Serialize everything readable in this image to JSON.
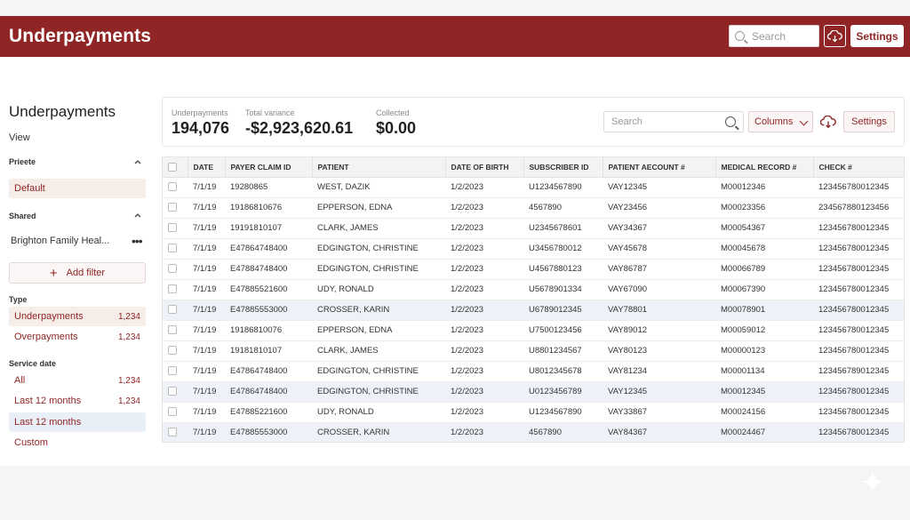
{
  "header": {
    "title": "Underpayments",
    "search_placeholder": "Search",
    "settings_label": "Settings",
    "accent": "#8f2525"
  },
  "sidebar": {
    "title": "Underpayments",
    "view_label": "View",
    "private_label": "Priеete",
    "default_item": "Default",
    "shared_label": "Shared",
    "shared_item": "Brighton Family Heal...",
    "add_filter": "Add filter",
    "type_label": "Type",
    "types": [
      {
        "label": "Underpayments",
        "count": "1,234"
      },
      {
        "label": "Overpayments",
        "count": "1,234"
      }
    ],
    "service_label": "Service date",
    "service": [
      {
        "label": "All",
        "count": "1,234"
      },
      {
        "label": "Last 12 months",
        "count": "1,234"
      },
      {
        "label": "Last 12 months",
        "count": ""
      },
      {
        "label": "Custom",
        "count": ""
      }
    ]
  },
  "summary": {
    "underpayments_label": "Underpayments",
    "underpayments_value": "194,076",
    "variance_label": "Total variance",
    "variance_value": "-$2,923,620.61",
    "collected_label": "Collected",
    "collected_value": "$0.00",
    "search_placeholder": "Search",
    "columns_label": "Columns",
    "settings_label": "Settings"
  },
  "table": {
    "headers": [
      "DATE",
      "PAYER CLAIM ID",
      "PATIENT",
      "DATE OF BIRTH",
      "SUBSCRIBER ID",
      "PATIENT AECOUNT #",
      "MEDICAL RECORD #",
      "CHECK #"
    ],
    "rows": [
      [
        "7/1/19",
        "19280865",
        "WEST, DAZIK",
        "1/2/2023",
        "U1234567890",
        "VAY12345",
        "M00012346",
        "123456780012345"
      ],
      [
        "7/1/19",
        "19186810676",
        "EPPERSON, EDNA",
        "1/2/2023",
        "4567890",
        "VAY23456",
        "M00023356",
        "234567880123456"
      ],
      [
        "7/1/19",
        "19191810107",
        "CLARK, JAMES",
        "1/2/2023",
        "U2345678601",
        "VAY34367",
        "M00054367",
        "123456780012345"
      ],
      [
        "7/1/19",
        "E47864748400",
        "EDGINGTON, CHRISTINE",
        "1/2/2023",
        "U3456780012",
        "VAY45678",
        "M00045678",
        "123456780012345"
      ],
      [
        "7/1/19",
        "E47884748400",
        "EDGINGTON, CHRISTINE",
        "1/2/2023",
        "U4567880123",
        "VAY86787",
        "M00066789",
        "123456780012345"
      ],
      [
        "7/1/19",
        "E47885521600",
        "UDY, RONALD",
        "1/2/2023",
        "U5678901334",
        "VAY67090",
        "M00067390",
        "123456780012345"
      ],
      [
        "7/1/19",
        "E47885553000",
        "CROSSER, KARIN",
        "1/2/2023",
        "U6789012345",
        "VAY78801",
        "M00078901",
        "123456780012345"
      ],
      [
        "7/1/19",
        "19186810076",
        "EPPERSON, EDNA",
        "1/2/2023",
        "U7500123456",
        "VAY89012",
        "M00059012",
        "123456780012345"
      ],
      [
        "7/1/19",
        "19181810107",
        "CLARK, JAMES",
        "1/2/2023",
        "U8801234567",
        "VAY80123",
        "M00000123",
        "123456780012345"
      ],
      [
        "7/1/19",
        "E47864748400",
        "EDGINGTON, CHRISTINE",
        "1/2/2023",
        "U8012345678",
        "VAY81234",
        "M00001134",
        "123456789012345"
      ],
      [
        "7/1/19",
        "E47864748400",
        "EDGINGTON, CHRISTINE",
        "1/2/2023",
        "U0123456789",
        "VAY12345",
        "M00012345",
        "123456780012345"
      ],
      [
        "7/1/19",
        "E47885221600",
        "UDY, RONALD",
        "1/2/2023",
        "U1234567890",
        "VAY33867",
        "M00024156",
        "123456780012345"
      ],
      [
        "7/1/19",
        "E47885553000",
        "CROSSER, KARIN",
        "1/2/2023",
        "4567890",
        "VAY84367",
        "M00024467",
        "123456780012345"
      ]
    ],
    "highlighted_rows": [
      6,
      10,
      12
    ]
  }
}
